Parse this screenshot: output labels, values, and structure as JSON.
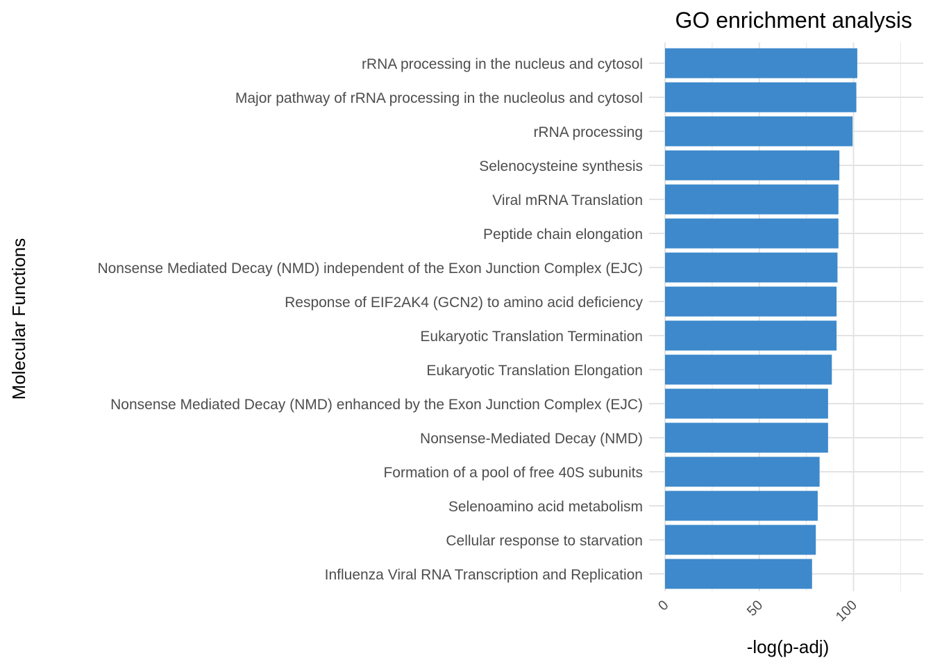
{
  "chart_data": {
    "type": "bar",
    "orientation": "horizontal",
    "title": "GO enrichment analysis",
    "xlabel": "-log(p-adj)",
    "ylabel": "Molecular Functions",
    "xlim": [
      0,
      126
    ],
    "x_ticks": [
      0,
      50,
      100
    ],
    "grid": true,
    "bar_color": "#3d89cb",
    "categories": [
      "rRNA processing in the nucleus and cytosol",
      "Major pathway of rRNA processing in the nucleolus and cytosol",
      "rRNA processing",
      "Selenocysteine synthesis",
      "Viral mRNA Translation",
      "Peptide chain elongation",
      "Nonsense Mediated Decay (NMD) independent of the Exon Junction Complex (EJC)",
      "Response of EIF2AK4 (GCN2) to amino acid deficiency",
      "Eukaryotic Translation Termination",
      "Eukaryotic Translation Elongation",
      "Nonsense Mediated Decay (NMD) enhanced by the Exon Junction Complex (EJC)",
      "Nonsense-Mediated Decay (NMD)",
      "Formation of a pool of free 40S subunits",
      "Selenoamino acid metabolism",
      "Cellular response to starvation",
      "Influenza Viral RNA Transcription and Replication"
    ],
    "values": [
      102,
      101.5,
      99.5,
      92.5,
      92,
      92,
      91.5,
      91,
      91,
      88.5,
      86.5,
      86.5,
      82,
      81,
      80,
      78
    ]
  }
}
